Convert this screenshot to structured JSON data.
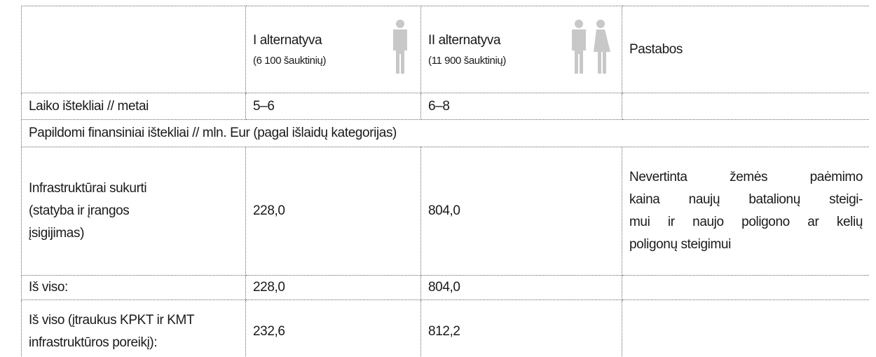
{
  "table": {
    "header": [
      "",
      {
        "title": "I alternatyva",
        "subtitle": "(6 100 šauktinių)"
      },
      {
        "title": "II alternatyva",
        "subtitle": "(11 900 šauktinių)"
      },
      "Pastabos"
    ],
    "rows": [
      [
        "Laiko ištekliai // metai",
        "5–6",
        "6–8",
        ""
      ],
      [
        "Papildomi finansiniai ištekliai // mln. Eur (pagal išlaidų kategorijas)"
      ],
      [
        [
          "Infrastruktūrai sukurti",
          "(statyba ir įrangos",
          "įsigijimas)"
        ],
        "228,0",
        "804,0",
        [
          "Nevertinta žemės paėmimo",
          "kaina naujų batalionų steigi-",
          "mui ir naujo poligono ar kelių",
          "poligonų steigimui"
        ]
      ],
      [
        "Iš viso:",
        "228,0",
        "804,0",
        ""
      ],
      [
        [
          "Iš viso (įtraukus KPKT ir KMT",
          "infrastruktūros poreikį):"
        ],
        "232,6",
        "812,2",
        ""
      ]
    ]
  }
}
